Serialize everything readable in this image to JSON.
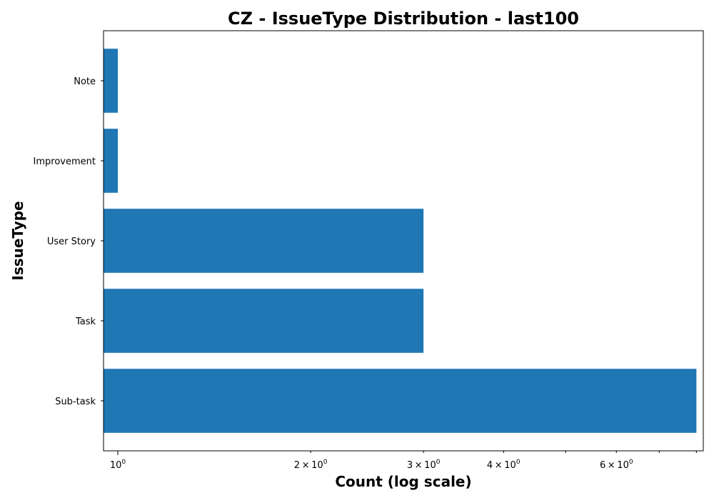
{
  "chart_data": {
    "type": "bar",
    "orientation": "horizontal",
    "title": "CZ - IssueType Distribution - last100",
    "xlabel": "Count (log scale)",
    "ylabel": "IssueType",
    "x_scale": "log",
    "xlim": [
      0.95,
      8.2
    ],
    "categories": [
      "Sub-task",
      "Task",
      "User Story",
      "Improvement",
      "Note"
    ],
    "values": [
      8,
      3,
      3,
      1,
      1
    ],
    "x_major_ticks": [
      {
        "value": 1,
        "base": "10",
        "exponent": "0"
      }
    ],
    "x_minor_ticks": [
      {
        "value": 2,
        "coef": "2",
        "base": "10",
        "exponent": "0"
      },
      {
        "value": 3,
        "coef": "3",
        "base": "10",
        "exponent": "0"
      },
      {
        "value": 4,
        "coef": "4",
        "base": "10",
        "exponent": "0"
      },
      {
        "value": 5
      },
      {
        "value": 6,
        "coef": "6",
        "base": "10",
        "exponent": "0"
      },
      {
        "value": 7
      },
      {
        "value": 8
      }
    ],
    "grid": false,
    "bar_color": "#1f77b4"
  }
}
